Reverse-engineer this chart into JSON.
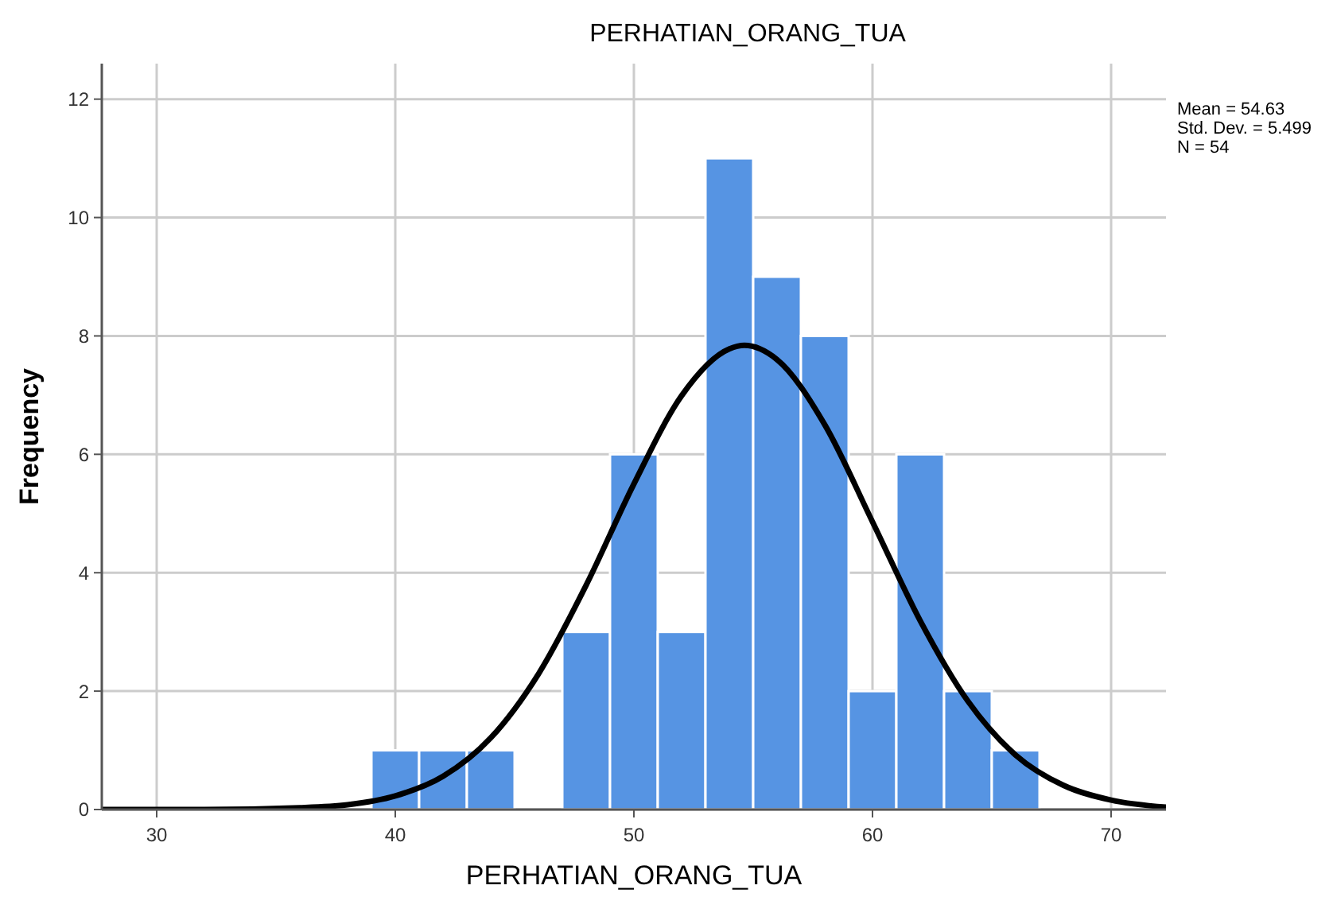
{
  "chart_data": {
    "type": "histogram",
    "title": "PERHATIAN_ORANG_TUA",
    "xlabel": "PERHATIAN_ORANG_TUA",
    "ylabel": "Frequency",
    "annotations": [
      "Mean = 54.63",
      "Std. Dev. = 5.499",
      "N = 54"
    ],
    "bins": [
      39,
      41,
      43,
      45,
      47,
      49,
      51,
      53,
      55,
      57,
      59,
      61,
      63,
      65,
      67
    ],
    "xlim": [
      27.7,
      72.3
    ],
    "xticks": [
      30,
      40,
      50,
      60,
      70
    ],
    "ylim": [
      0,
      12.6
    ],
    "yticks": [
      0,
      2,
      4,
      6,
      8,
      10,
      12
    ],
    "grid": true,
    "series": [
      {
        "color": "#5694e3",
        "values": [
          1,
          1,
          1,
          0,
          3,
          6,
          3,
          11,
          9,
          8,
          2,
          6,
          2,
          1
        ]
      },
      {
        "type": "line",
        "color": "#000000",
        "x": [
          27.7,
          32,
          36,
          38,
          40,
          42,
          44,
          46,
          48,
          50,
          52,
          54,
          54.63,
          56,
          58,
          60,
          62,
          64,
          66,
          68,
          70,
          72.3
        ],
        "values": [
          0,
          0,
          0.03,
          0.08,
          0.23,
          0.56,
          1.21,
          2.29,
          3.79,
          5.5,
          6.99,
          7.78,
          7.84,
          7.6,
          6.5,
          4.86,
          3.19,
          1.83,
          0.92,
          0.41,
          0.16,
          0.04
        ]
      }
    ]
  }
}
